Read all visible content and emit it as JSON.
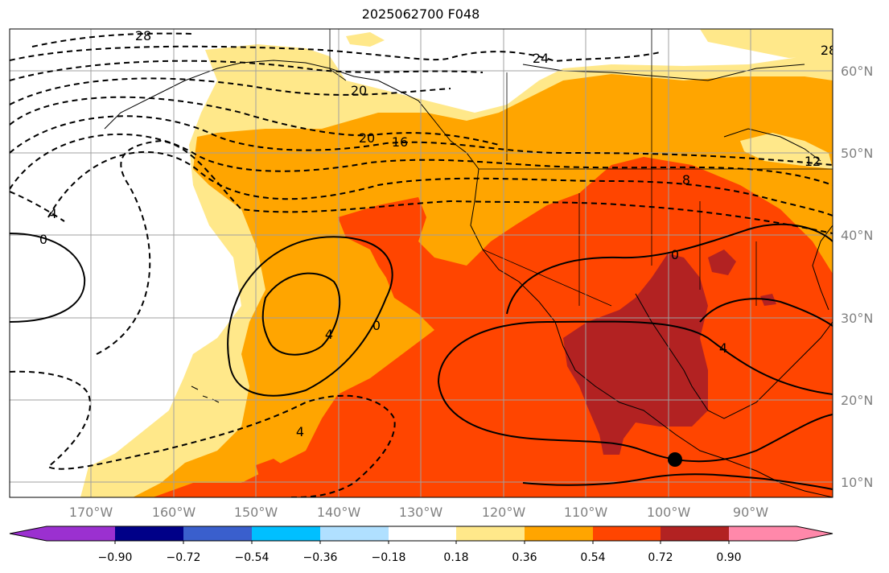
{
  "title": "2025062700 F048",
  "map": {
    "lon_labels": [
      "170°W",
      "160°W",
      "150°W",
      "140°W",
      "130°W",
      "120°W",
      "110°W",
      "100°W",
      "90°W"
    ],
    "lat_labels": [
      "60°N",
      "50°N",
      "40°N",
      "30°N",
      "20°N",
      "10°N"
    ]
  },
  "colorbar": {
    "tick_labels": [
      "−0.90",
      "−0.72",
      "−0.54",
      "−0.36",
      "−0.18",
      "0.18",
      "0.36",
      "0.54",
      "0.72",
      "0.90"
    ],
    "colors": [
      "#9b30d0",
      "#000088",
      "#3a5fcd",
      "#00bfff",
      "#b0e0ff",
      "#ffffff",
      "#ffe88a",
      "#ffa500",
      "#ff4500",
      "#b22222",
      "#ff88aa"
    ]
  },
  "contour_labels": [
    "28",
    "24",
    "20",
    "16",
    "12",
    "8",
    "4",
    "0",
    "0",
    "0",
    "4",
    "4",
    "4",
    "28",
    "20"
  ],
  "fill_colors": {
    "c018": "#ffe88a",
    "c036": "#ffa500",
    "c054": "#ff4500",
    "c072": "#b22222"
  },
  "marker": {
    "label": ""
  }
}
